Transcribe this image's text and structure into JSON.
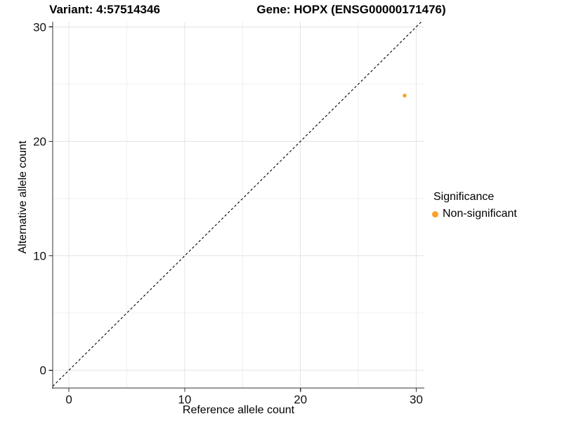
{
  "header": {
    "variant_title": "Variant: 4:57514346",
    "gene_title": "Gene: HOPX (ENSG00000171476)"
  },
  "chart_data": {
    "type": "scatter",
    "title": "Variant: 4:57514346   Gene: HOPX (ENSG00000171476)",
    "xlabel": "Reference allele count",
    "ylabel": "Alternative allele count",
    "xlim": [
      -1.4,
      30.7
    ],
    "ylim": [
      -1.55,
      30.45
    ],
    "xticks": [
      0,
      10,
      20,
      30
    ],
    "yticks": [
      0,
      10,
      20,
      30
    ],
    "minor_xticks": [
      5,
      15,
      25
    ],
    "minor_yticks": [
      5,
      15,
      25
    ],
    "grid": true,
    "identity_line": {
      "slope": 1,
      "intercept": 0,
      "style": "dashed"
    },
    "series": [
      {
        "name": "Non-significant",
        "color": "#FCA028",
        "points": [
          {
            "x": 29,
            "y": 24
          }
        ]
      }
    ],
    "legend_position": "right"
  },
  "legend": {
    "title": "Significance",
    "items": [
      {
        "label": "Non-significant",
        "color": "#FCA028"
      }
    ]
  },
  "colors": {
    "point_nonsignificant": "#FCA028",
    "axis_line": "#333333",
    "tick_label": "#111111",
    "grid_major": "#e4e4e4",
    "grid_minor": "#efefef",
    "identity_line": "#000000",
    "background": "#ffffff"
  }
}
